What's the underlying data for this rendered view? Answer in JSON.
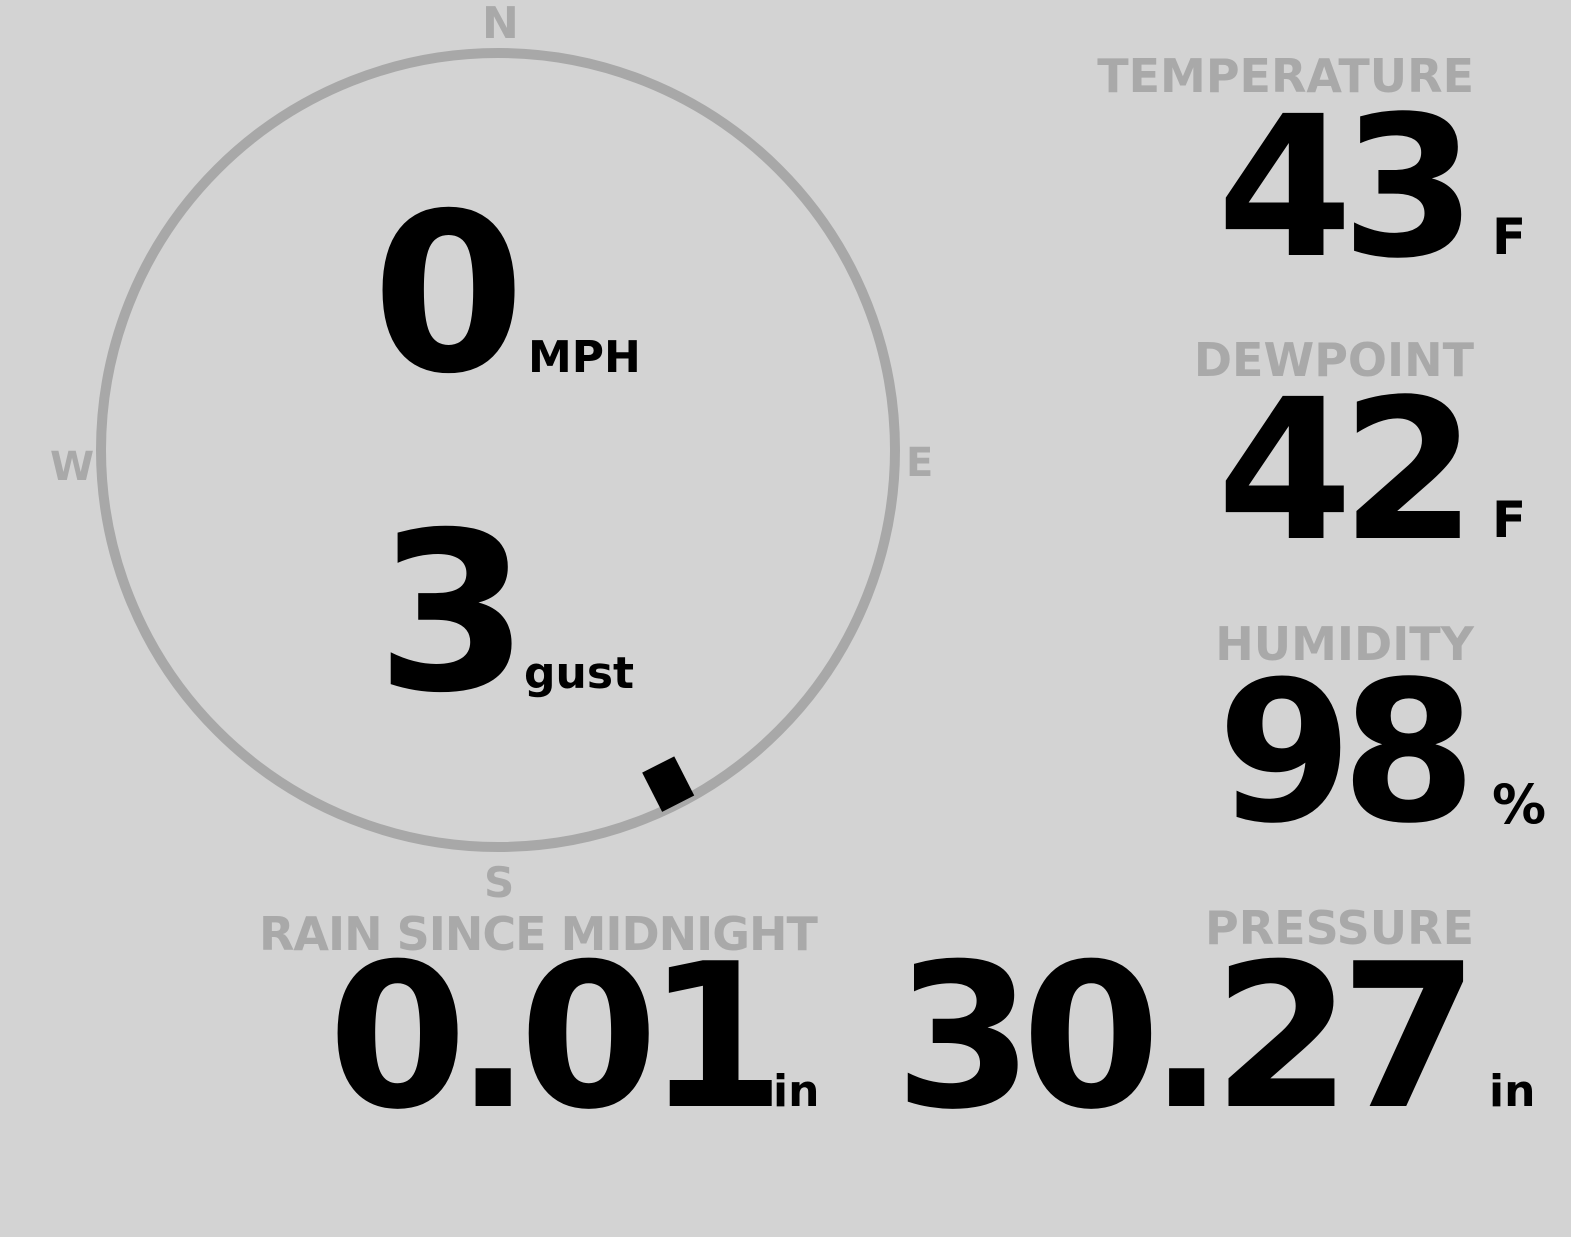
{
  "wind": {
    "speed": "0",
    "speed_unit": "MPH",
    "gust": "3",
    "gust_label": "gust",
    "direction_degrees": 153,
    "compass": {
      "north": "N",
      "east": "E",
      "south": "S",
      "west": "W"
    }
  },
  "temperature": {
    "label": "TEMPERATURE",
    "value": "43",
    "unit": "F"
  },
  "dewpoint": {
    "label": "DEWPOINT",
    "value": "42",
    "unit": "F"
  },
  "humidity": {
    "label": "HUMIDITY",
    "value": "98",
    "unit": "%"
  },
  "pressure": {
    "label": "PRESSURE",
    "value": "30.27",
    "unit": "in"
  },
  "rain": {
    "label": "RAIN SINCE MIDNIGHT",
    "value": "0.01",
    "unit": "in"
  },
  "colors": {
    "background": "#d3d3d3",
    "label": "#a9a9a9",
    "ring": "#a8a8a8",
    "value": "#000000"
  }
}
